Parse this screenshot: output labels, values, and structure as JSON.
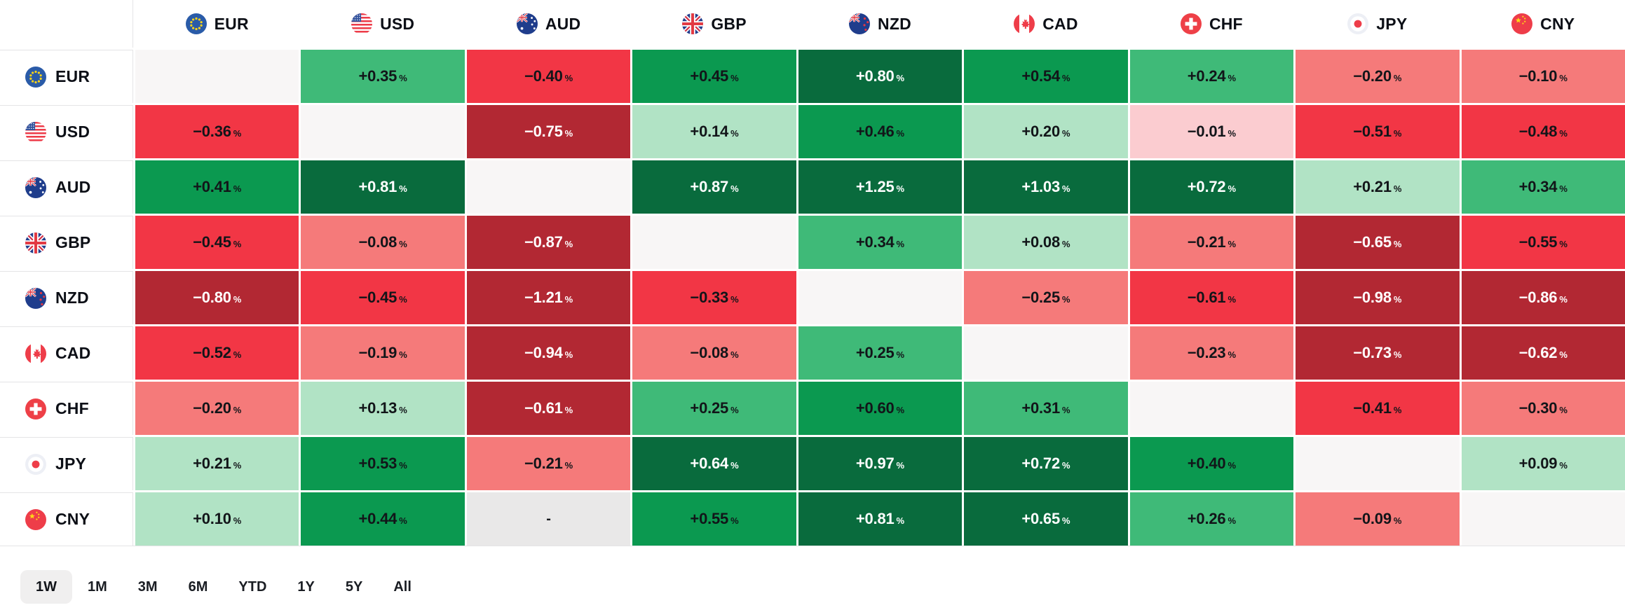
{
  "palette": {
    "green_1": "#b1e3c5",
    "green_2": "#3fba78",
    "green_3": "#0b9950",
    "green_4": "#096b3d",
    "red_1": "#fbccd0",
    "red_2": "#f57a7a",
    "red_3": "#f23645",
    "red_4": "#b22833",
    "neutral": "#f8f6f6",
    "empty": "#e9e8e8",
    "text_dark": "#121519",
    "text_light": "#ffffff",
    "selected_button_bg": "#f0efef",
    "grid_line": "#e4e4e6"
  },
  "percent_sign": "%",
  "empty_cell_text": "-",
  "currencies": [
    {
      "code": "EUR",
      "flag": "eu-flag-icon"
    },
    {
      "code": "USD",
      "flag": "us-flag-icon"
    },
    {
      "code": "AUD",
      "flag": "au-flag-icon"
    },
    {
      "code": "GBP",
      "flag": "gb-flag-icon"
    },
    {
      "code": "NZD",
      "flag": "nz-flag-icon"
    },
    {
      "code": "CAD",
      "flag": "ca-flag-icon"
    },
    {
      "code": "CHF",
      "flag": "ch-flag-icon"
    },
    {
      "code": "JPY",
      "flag": "jp-flag-icon"
    },
    {
      "code": "CNY",
      "flag": "cn-flag-icon"
    }
  ],
  "chart_data": {
    "type": "heatmap",
    "title": "Forex cross-rates heatmap, 1W % change",
    "columns": [
      "EUR",
      "USD",
      "AUD",
      "GBP",
      "NZD",
      "CAD",
      "CHF",
      "JPY",
      "CNY"
    ],
    "rows": [
      {
        "code": "EUR",
        "cells": [
          null,
          {
            "value": "+0.35",
            "bucket": "green_2"
          },
          {
            "value": "−0.40",
            "bucket": "red_3"
          },
          {
            "value": "+0.45",
            "bucket": "green_3"
          },
          {
            "value": "+0.80",
            "bucket": "green_4"
          },
          {
            "value": "+0.54",
            "bucket": "green_3"
          },
          {
            "value": "+0.24",
            "bucket": "green_2"
          },
          {
            "value": "−0.20",
            "bucket": "red_2"
          },
          {
            "value": "−0.10",
            "bucket": "red_2"
          }
        ]
      },
      {
        "code": "USD",
        "cells": [
          {
            "value": "−0.36",
            "bucket": "red_3"
          },
          null,
          {
            "value": "−0.75",
            "bucket": "red_4"
          },
          {
            "value": "+0.14",
            "bucket": "green_1"
          },
          {
            "value": "+0.46",
            "bucket": "green_3"
          },
          {
            "value": "+0.20",
            "bucket": "green_1"
          },
          {
            "value": "−0.01",
            "bucket": "red_1"
          },
          {
            "value": "−0.51",
            "bucket": "red_3"
          },
          {
            "value": "−0.48",
            "bucket": "red_3"
          }
        ]
      },
      {
        "code": "AUD",
        "cells": [
          {
            "value": "+0.41",
            "bucket": "green_3"
          },
          {
            "value": "+0.81",
            "bucket": "green_4"
          },
          null,
          {
            "value": "+0.87",
            "bucket": "green_4"
          },
          {
            "value": "+1.25",
            "bucket": "green_4"
          },
          {
            "value": "+1.03",
            "bucket": "green_4"
          },
          {
            "value": "+0.72",
            "bucket": "green_4"
          },
          {
            "value": "+0.21",
            "bucket": "green_1"
          },
          {
            "value": "+0.34",
            "bucket": "green_2"
          }
        ]
      },
      {
        "code": "GBP",
        "cells": [
          {
            "value": "−0.45",
            "bucket": "red_3"
          },
          {
            "value": "−0.08",
            "bucket": "red_2"
          },
          {
            "value": "−0.87",
            "bucket": "red_4"
          },
          null,
          {
            "value": "+0.34",
            "bucket": "green_2"
          },
          {
            "value": "+0.08",
            "bucket": "green_1"
          },
          {
            "value": "−0.21",
            "bucket": "red_2"
          },
          {
            "value": "−0.65",
            "bucket": "red_4"
          },
          {
            "value": "−0.55",
            "bucket": "red_3"
          }
        ]
      },
      {
        "code": "NZD",
        "cells": [
          {
            "value": "−0.80",
            "bucket": "red_4"
          },
          {
            "value": "−0.45",
            "bucket": "red_3"
          },
          {
            "value": "−1.21",
            "bucket": "red_4"
          },
          {
            "value": "−0.33",
            "bucket": "red_3"
          },
          null,
          {
            "value": "−0.25",
            "bucket": "red_2"
          },
          {
            "value": "−0.61",
            "bucket": "red_3"
          },
          {
            "value": "−0.98",
            "bucket": "red_4"
          },
          {
            "value": "−0.86",
            "bucket": "red_4"
          }
        ]
      },
      {
        "code": "CAD",
        "cells": [
          {
            "value": "−0.52",
            "bucket": "red_3"
          },
          {
            "value": "−0.19",
            "bucket": "red_2"
          },
          {
            "value": "−0.94",
            "bucket": "red_4"
          },
          {
            "value": "−0.08",
            "bucket": "red_2"
          },
          {
            "value": "+0.25",
            "bucket": "green_2"
          },
          null,
          {
            "value": "−0.23",
            "bucket": "red_2"
          },
          {
            "value": "−0.73",
            "bucket": "red_4"
          },
          {
            "value": "−0.62",
            "bucket": "red_4"
          }
        ]
      },
      {
        "code": "CHF",
        "cells": [
          {
            "value": "−0.20",
            "bucket": "red_2"
          },
          {
            "value": "+0.13",
            "bucket": "green_1"
          },
          {
            "value": "−0.61",
            "bucket": "red_4"
          },
          {
            "value": "+0.25",
            "bucket": "green_2"
          },
          {
            "value": "+0.60",
            "bucket": "green_3"
          },
          {
            "value": "+0.31",
            "bucket": "green_2"
          },
          null,
          {
            "value": "−0.41",
            "bucket": "red_3"
          },
          {
            "value": "−0.30",
            "bucket": "red_2"
          }
        ]
      },
      {
        "code": "JPY",
        "cells": [
          {
            "value": "+0.21",
            "bucket": "green_1"
          },
          {
            "value": "+0.53",
            "bucket": "green_3"
          },
          {
            "value": "−0.21",
            "bucket": "red_2"
          },
          {
            "value": "+0.64",
            "bucket": "green_4"
          },
          {
            "value": "+0.97",
            "bucket": "green_4"
          },
          {
            "value": "+0.72",
            "bucket": "green_4"
          },
          {
            "value": "+0.40",
            "bucket": "green_3"
          },
          null,
          {
            "value": "+0.09",
            "bucket": "green_1"
          }
        ]
      },
      {
        "code": "CNY",
        "cells": [
          {
            "value": "+0.10",
            "bucket": "green_1"
          },
          {
            "value": "+0.44",
            "bucket": "green_3"
          },
          {
            "value": "-",
            "bucket": "empty"
          },
          {
            "value": "+0.55",
            "bucket": "green_3"
          },
          {
            "value": "+0.81",
            "bucket": "green_4"
          },
          {
            "value": "+0.65",
            "bucket": "green_4"
          },
          {
            "value": "+0.26",
            "bucket": "green_2"
          },
          {
            "value": "−0.09",
            "bucket": "red_2"
          },
          null
        ]
      }
    ]
  },
  "timeframes": {
    "options": [
      "1W",
      "1M",
      "3M",
      "6M",
      "YTD",
      "1Y",
      "5Y",
      "All"
    ],
    "selected": "1W"
  }
}
